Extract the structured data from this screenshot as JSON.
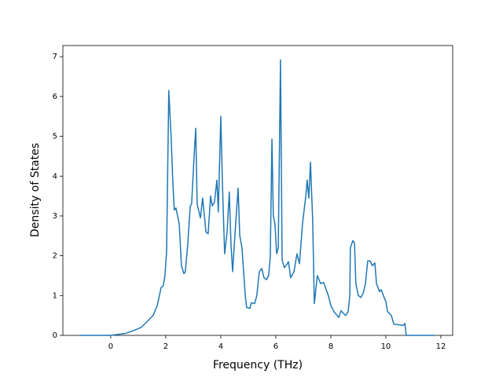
{
  "chart_data": {
    "type": "line",
    "x_label": "Frequency (THz)",
    "y_label": "Density of States",
    "xlim": [
      -1.74,
      12.43
    ],
    "ylim": [
      0,
      7.28
    ],
    "xticks": [
      0,
      2,
      4,
      6,
      8,
      10,
      12
    ],
    "yticks": [
      0,
      1,
      2,
      3,
      4,
      5,
      6,
      7
    ],
    "grid": false,
    "x": [
      -1.14,
      0,
      0.54,
      0.83,
      1.11,
      1.54,
      1.69,
      1.83,
      1.91,
      1.97,
      2.03,
      2.11,
      2.2,
      2.26,
      2.31,
      2.37,
      2.49,
      2.57,
      2.66,
      2.71,
      2.8,
      2.89,
      2.94,
      3.03,
      3.09,
      3.14,
      3.26,
      3.34,
      3.46,
      3.54,
      3.63,
      3.69,
      3.77,
      3.86,
      3.91,
      4.0,
      4.06,
      4.14,
      4.23,
      4.31,
      4.37,
      4.43,
      4.54,
      4.63,
      4.69,
      4.77,
      4.89,
      4.94,
      5.06,
      5.11,
      5.23,
      5.31,
      5.4,
      5.49,
      5.57,
      5.66,
      5.74,
      5.8,
      5.86,
      5.91,
      5.97,
      6.03,
      6.09,
      6.17,
      6.23,
      6.31,
      6.37,
      6.46,
      6.54,
      6.66,
      6.77,
      6.86,
      6.97,
      7.09,
      7.14,
      7.2,
      7.26,
      7.34,
      7.4,
      7.51,
      7.63,
      7.74,
      7.83,
      7.91,
      8.0,
      8.11,
      8.29,
      8.37,
      8.46,
      8.54,
      8.63,
      8.69,
      8.71,
      8.8,
      8.86,
      8.91,
      9.0,
      9.09,
      9.17,
      9.26,
      9.34,
      9.43,
      9.51,
      9.6,
      9.66,
      9.77,
      9.83,
      9.91,
      10.0,
      10.06,
      10.2,
      10.29,
      10.54,
      10.63,
      10.69,
      10.74,
      11.77
    ],
    "series": [
      {
        "color": "#1f77b4",
        "values": [
          0,
          0,
          0.05,
          0.12,
          0.2,
          0.5,
          0.75,
          1.2,
          1.25,
          1.5,
          2.1,
          6.15,
          4.9,
          3.8,
          3.15,
          3.2,
          2.8,
          1.75,
          1.55,
          1.6,
          2.3,
          3.25,
          3.3,
          4.5,
          5.2,
          3.3,
          2.95,
          3.45,
          2.6,
          2.55,
          3.5,
          3.25,
          3.35,
          3.9,
          3.1,
          5.5,
          3.8,
          2.05,
          2.6,
          3.6,
          2.3,
          1.6,
          2.8,
          3.7,
          2.5,
          2.2,
          1.0,
          0.7,
          0.68,
          0.82,
          0.8,
          1.0,
          1.6,
          1.68,
          1.45,
          1.4,
          1.5,
          2.0,
          4.93,
          3.0,
          2.8,
          2.05,
          2.2,
          6.92,
          1.9,
          1.7,
          1.75,
          1.85,
          1.45,
          1.6,
          2.05,
          1.8,
          2.8,
          3.5,
          3.9,
          3.45,
          4.35,
          2.9,
          0.8,
          1.5,
          1.3,
          1.33,
          1.15,
          1.0,
          0.75,
          0.6,
          0.45,
          0.62,
          0.55,
          0.5,
          0.6,
          1.0,
          2.2,
          2.38,
          2.32,
          1.3,
          1.0,
          0.95,
          1.05,
          1.3,
          1.87,
          1.87,
          1.75,
          1.82,
          1.3,
          1.1,
          1.15,
          1.0,
          0.85,
          0.6,
          0.5,
          0.28,
          0.26,
          0.25,
          0.3,
          0,
          0
        ]
      }
    ]
  }
}
